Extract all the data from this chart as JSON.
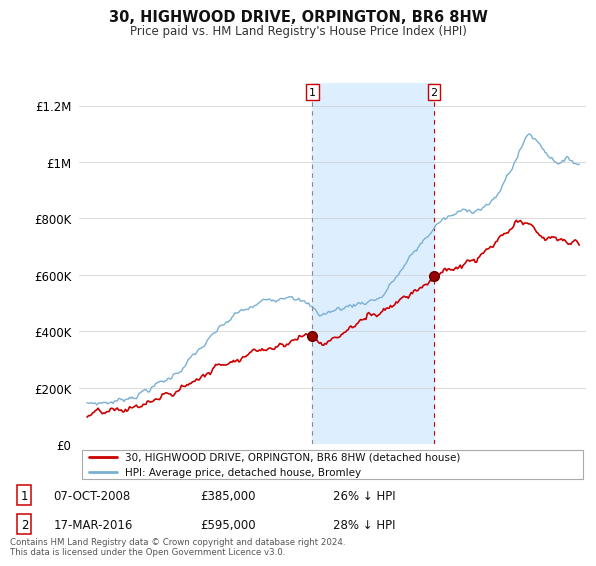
{
  "title": "30, HIGHWOOD DRIVE, ORPINGTON, BR6 8HW",
  "subtitle": "Price paid vs. HM Land Registry's House Price Index (HPI)",
  "ylabel_ticks": [
    "£0",
    "£200K",
    "£400K",
    "£600K",
    "£800K",
    "£1M",
    "£1.2M"
  ],
  "ytick_values": [
    0,
    200000,
    400000,
    600000,
    800000,
    1000000,
    1200000
  ],
  "ylim": [
    0,
    1280000
  ],
  "xlim_start": 1994.5,
  "xlim_end": 2025.5,
  "sale1_x": 2008.77,
  "sale1_y": 385000,
  "sale2_x": 2016.21,
  "sale2_y": 595000,
  "sale1_date": "07-OCT-2008",
  "sale1_price": "£385,000",
  "sale1_hpi": "26% ↓ HPI",
  "sale2_date": "17-MAR-2016",
  "sale2_price": "£595,000",
  "sale2_hpi": "28% ↓ HPI",
  "legend_line1": "30, HIGHWOOD DRIVE, ORPINGTON, BR6 8HW (detached house)",
  "legend_line2": "HPI: Average price, detached house, Bromley",
  "footnote": "Contains HM Land Registry data © Crown copyright and database right 2024.\nThis data is licensed under the Open Government Licence v3.0.",
  "line_color_red": "#cc0000",
  "line_color_blue": "#7ab0d4",
  "shade_color": "#ddeeff",
  "vline1_color": "#888888",
  "vline2_color": "#cc0000"
}
